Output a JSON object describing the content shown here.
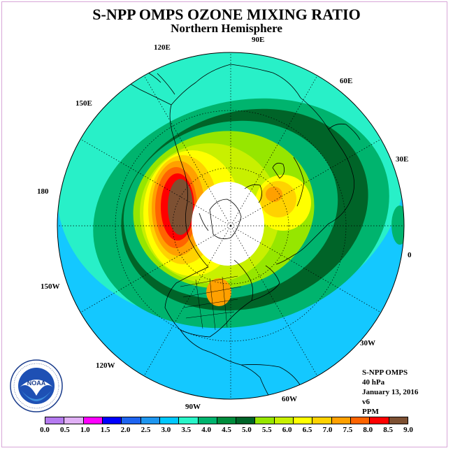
{
  "title": "S-NPP OMPS OZONE MIXING RATIO",
  "subtitle": "Northern Hemisphere",
  "longitude_labels": [
    "120E",
    "90E",
    "60E",
    "150E",
    "30E",
    "180",
    "0",
    "150W",
    "30W",
    "120W",
    "60W",
    "90W"
  ],
  "info": {
    "instrument": "S-NPP OMPS",
    "pressure": "40 hPa",
    "date": "January 13, 2016",
    "version": "v6",
    "units": "PPM"
  },
  "logo": {
    "text": "NOAA",
    "ring_text": "NATIONAL OCEANIC AND ATMOSPHERIC ADMINISTRATION · U.S. DEPARTMENT OF COMMERCE"
  },
  "colorbar": {
    "ticks": [
      "0.0",
      "0.5",
      "1.0",
      "1.5",
      "2.0",
      "2.5",
      "3.0",
      "3.5",
      "4.0",
      "4.5",
      "5.0",
      "5.5",
      "6.0",
      "6.5",
      "7.0",
      "7.5",
      "8.0",
      "8.5",
      "9.0"
    ],
    "colors": [
      "#b57bf0",
      "#e0b0f5",
      "#ff00ff",
      "#0000ff",
      "#1e64f0",
      "#1e96f0",
      "#00c8ff",
      "#28f5c8",
      "#00b46e",
      "#008c3c",
      "#006428",
      "#96e600",
      "#c8f000",
      "#ffff00",
      "#ffd200",
      "#ffa000",
      "#ff6400",
      "#ff0000",
      "#7d5032"
    ]
  },
  "map_colors": {
    "ocean_blue": "#14c8ff",
    "cyan_band": "#28f0c8",
    "green_band": "#00b46e",
    "dark_green": "#006428",
    "lime": "#96e600",
    "yellow_green": "#c8f000",
    "yellow": "#ffff00",
    "orange": "#ffa000",
    "red": "#ff0000",
    "brown": "#7d5032",
    "polar_night": "#ffffff"
  }
}
